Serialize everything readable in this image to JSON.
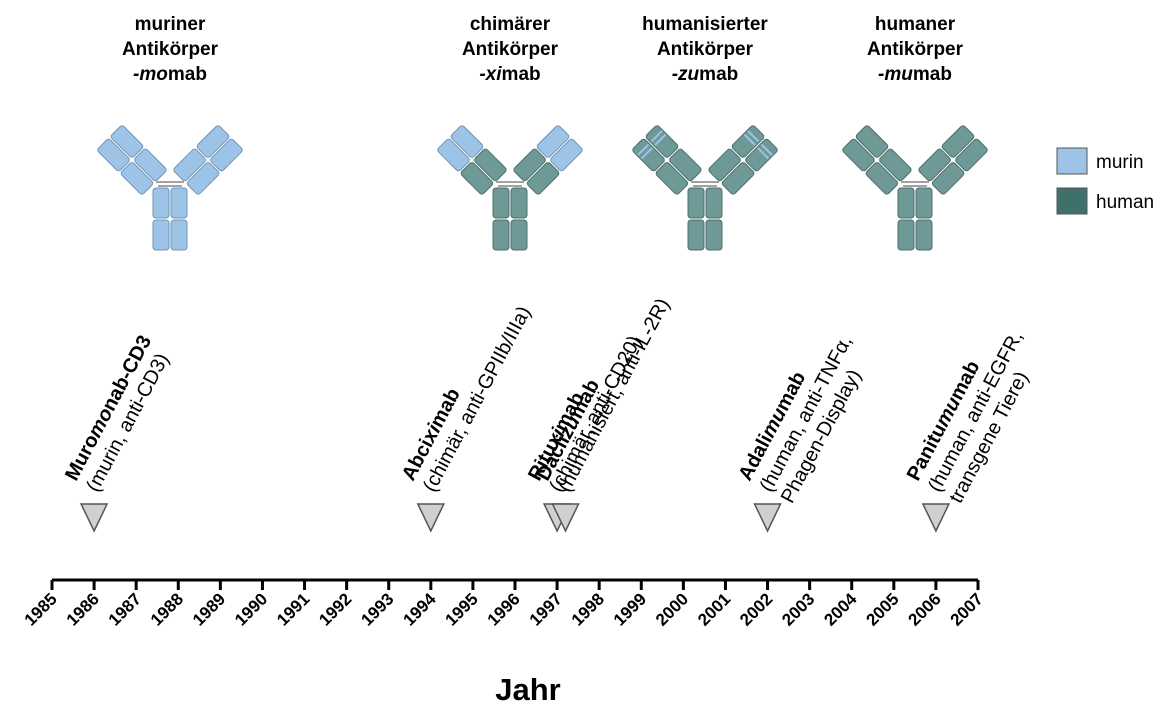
{
  "chart_data": {
    "type": "timeline",
    "xlabel": "Jahr",
    "xlim": [
      1985,
      2007
    ],
    "xticks": [
      1985,
      1986,
      1987,
      1988,
      1989,
      1990,
      1991,
      1992,
      1993,
      1994,
      1995,
      1996,
      1997,
      1998,
      1999,
      2000,
      2001,
      2002,
      2003,
      2004,
      2005,
      2006,
      2007
    ],
    "legend": [
      {
        "name": "murin",
        "color": "#9dc3e6"
      },
      {
        "name": "human",
        "color": "#3f706c"
      }
    ],
    "antibody_types": [
      {
        "lines": [
          "muriner",
          "Antikörper"
        ],
        "suffix": [
          "-mo",
          "mab"
        ]
      },
      {
        "lines": [
          "chimärer",
          "Antikörper"
        ],
        "suffix": [
          "-xi",
          "mab"
        ]
      },
      {
        "lines": [
          "humanisierter",
          "Antikörper"
        ],
        "suffix": [
          "-zu",
          "mab"
        ]
      },
      {
        "lines": [
          "humaner",
          "Antikörper"
        ],
        "suffix": [
          "-mu",
          "mab"
        ]
      }
    ],
    "events": [
      {
        "name_parts": [
          "Muro",
          "mo",
          "nab-CD3"
        ],
        "details": [
          "(murin, anti-CD3)"
        ],
        "x": 1986
      },
      {
        "name_parts": [
          "Abci",
          "xi",
          "mab"
        ],
        "details": [
          "(chimär, anti-GPIIb/IIIa)"
        ],
        "x": 1994
      },
      {
        "name_parts": [
          "Ritu",
          "xi",
          "mab"
        ],
        "details": [
          "(chimär, anti-CD20)"
        ],
        "x": 1997
      },
      {
        "name_parts": [
          "Dacli",
          "zu",
          "mab"
        ],
        "details": [
          "(humanisiert, anti-IL-2R)"
        ],
        "x": 1997.2
      },
      {
        "name_parts": [
          "Adali",
          "mu",
          "mab"
        ],
        "details": [
          "(human, anti-TNFα,",
          "Phagen-Display)"
        ],
        "x": 2002
      },
      {
        "name_parts": [
          "Panitu",
          "mu",
          "mab"
        ],
        "details": [
          "(human, anti-EGFR,",
          "transgene Tiere)"
        ],
        "x": 2006
      }
    ]
  }
}
